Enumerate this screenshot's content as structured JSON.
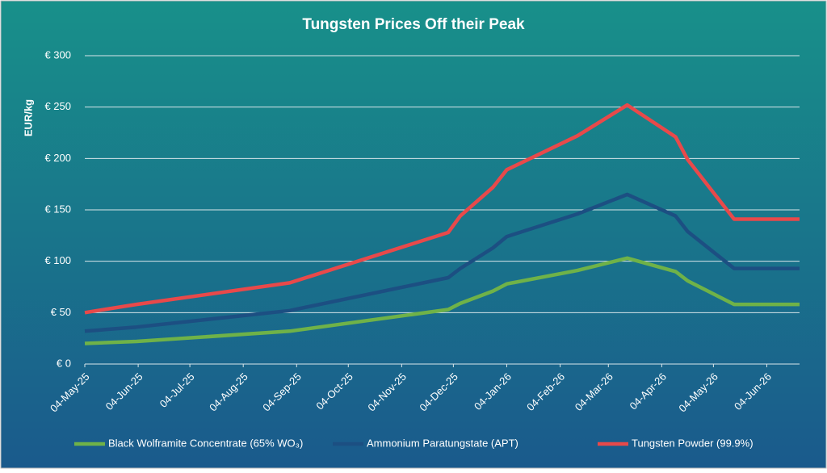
{
  "chart_data": {
    "type": "line",
    "title": "Tungsten Prices Off their Peak",
    "y_label": "EUR/kg",
    "x": [
      "2025-05-04",
      "2025-06-03",
      "2025-08-31",
      "2025-12-01",
      "2025-12-08",
      "2025-12-27",
      "2026-01-04",
      "2026-02-14",
      "2026-03-15",
      "2026-04-12",
      "2026-04-19",
      "2026-05-16",
      "2026-06-23"
    ],
    "xlim": [
      "2025-05-04",
      "2026-06-23"
    ],
    "xticks": [
      {
        "value": "2025-05-04",
        "label": "04-May-25"
      },
      {
        "value": "2025-06-04",
        "label": "04-Jun-25"
      },
      {
        "value": "2025-07-04",
        "label": "04-Jul-25"
      },
      {
        "value": "2025-08-04",
        "label": "04-Aug-25"
      },
      {
        "value": "2025-09-04",
        "label": "04-Sep-25"
      },
      {
        "value": "2025-10-04",
        "label": "04-Oct-25"
      },
      {
        "value": "2025-11-04",
        "label": "04-Nov-25"
      },
      {
        "value": "2025-12-04",
        "label": "04-Dec-25"
      },
      {
        "value": "2026-01-04",
        "label": "04-Jan-26"
      },
      {
        "value": "2026-02-04",
        "label": "04-Feb-26"
      },
      {
        "value": "2026-03-04",
        "label": "04-Mar-26"
      },
      {
        "value": "2026-04-04",
        "label": "04-Apr-26"
      },
      {
        "value": "2026-05-04",
        "label": "04-May-26"
      },
      {
        "value": "2026-06-04",
        "label": "04-Jun-26"
      }
    ],
    "ylim": [
      0,
      300
    ],
    "yticks": [
      {
        "value": 0,
        "label": "€ 0"
      },
      {
        "value": 50,
        "label": "€ 50"
      },
      {
        "value": 100,
        "label": "€ 100"
      },
      {
        "value": 150,
        "label": "€ 150"
      },
      {
        "value": 200,
        "label": "€ 200"
      },
      {
        "value": 250,
        "label": "€ 250"
      },
      {
        "value": 300,
        "label": "€ 300"
      }
    ],
    "grid": true,
    "legend": "bottom",
    "series": [
      {
        "name": "Black Wolframite Concentrate (65% WO₃)",
        "color": "#6fb248",
        "values": [
          20,
          22,
          32,
          53,
          59,
          71,
          78,
          91,
          103,
          90,
          81,
          58,
          58
        ]
      },
      {
        "name": "Ammonium Paratungstate (APT)",
        "color": "#1c4f82",
        "values": [
          32,
          36,
          52,
          84,
          93,
          113,
          124,
          146,
          165,
          144,
          129,
          93,
          93
        ]
      },
      {
        "name": "Tungsten Powder (99.9%)",
        "color": "#e8494a",
        "values": [
          50,
          58,
          79,
          128,
          144,
          172,
          189,
          222,
          252,
          221,
          199,
          141,
          141
        ]
      }
    ]
  }
}
